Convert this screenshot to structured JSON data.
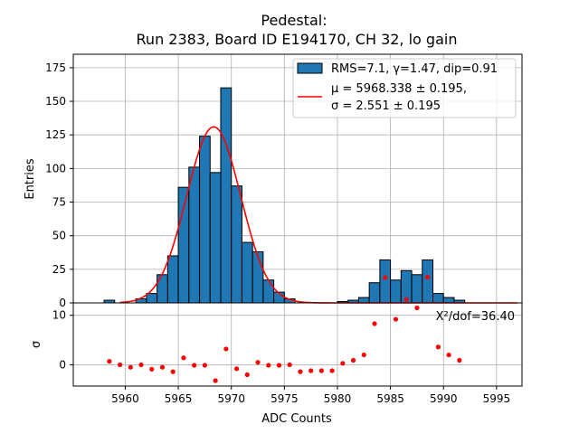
{
  "chart_data": {
    "type": "histogram",
    "title_line1": "Pedestal:",
    "title_line2": "Run 2383, Board ID E194170, CH 32, lo gain",
    "xlabel": "ADC Counts",
    "ylabel_top": "Entries",
    "ylabel_bottom": "σ",
    "xlim": [
      5955.1,
      5997.4
    ],
    "ylim_top": [
      0,
      185
    ],
    "ylim_bottom": [
      -4.3,
      12.5
    ],
    "xticks": [
      "5960",
      "5965",
      "5970",
      "5975",
      "5980",
      "5985",
      "5990",
      "5995"
    ],
    "xtick_values": [
      5960,
      5965,
      5970,
      5975,
      5980,
      5985,
      5990,
      5995
    ],
    "yticks_top": [
      "0",
      "25",
      "50",
      "75",
      "100",
      "125",
      "150",
      "175"
    ],
    "ytick_values_top": [
      0,
      25,
      50,
      75,
      100,
      125,
      150,
      175
    ],
    "yticks_bottom": [
      "0",
      "10"
    ],
    "ytick_values_bottom": [
      0,
      10
    ],
    "grid": true,
    "bar_color": "#1f77b4",
    "fit_color": "#ff0000",
    "residual_color": "#ff0000",
    "legend": {
      "position": "top-right",
      "hist_label": "RMS=7.1, γ=1.47, dip=0.91",
      "fit_line1": "μ = 5968.338 ± 0.195,",
      "fit_line2": "σ = 2.551 ± 0.195"
    },
    "chi2_label": "X²/dof=36.40",
    "bins": [
      {
        "x": 5958.5,
        "count": 2
      },
      {
        "x": 5959.5,
        "count": 0
      },
      {
        "x": 5960.5,
        "count": 0
      },
      {
        "x": 5961.5,
        "count": 3
      },
      {
        "x": 5962.5,
        "count": 7
      },
      {
        "x": 5963.5,
        "count": 21
      },
      {
        "x": 5964.5,
        "count": 35
      },
      {
        "x": 5965.5,
        "count": 86
      },
      {
        "x": 5966.5,
        "count": 101
      },
      {
        "x": 5967.5,
        "count": 124
      },
      {
        "x": 5968.5,
        "count": 97
      },
      {
        "x": 5969.5,
        "count": 160
      },
      {
        "x": 5970.5,
        "count": 87
      },
      {
        "x": 5971.5,
        "count": 45
      },
      {
        "x": 5972.5,
        "count": 38
      },
      {
        "x": 5973.5,
        "count": 17
      },
      {
        "x": 5974.5,
        "count": 8
      },
      {
        "x": 5975.5,
        "count": 3
      },
      {
        "x": 5980.5,
        "count": 1
      },
      {
        "x": 5981.5,
        "count": 2
      },
      {
        "x": 5982.5,
        "count": 4
      },
      {
        "x": 5983.5,
        "count": 15
      },
      {
        "x": 5984.5,
        "count": 32
      },
      {
        "x": 5985.5,
        "count": 17
      },
      {
        "x": 5986.5,
        "count": 24
      },
      {
        "x": 5987.5,
        "count": 21
      },
      {
        "x": 5988.5,
        "count": 32
      },
      {
        "x": 5989.5,
        "count": 7
      },
      {
        "x": 5990.5,
        "count": 4
      },
      {
        "x": 5991.5,
        "count": 2
      }
    ],
    "fit": {
      "mu": 5968.338,
      "sigma": 2.551,
      "amplitude": 131
    },
    "residuals": [
      {
        "x": 5958.5,
        "y": 0.7
      },
      {
        "x": 5959.5,
        "y": 0.0
      },
      {
        "x": 5960.5,
        "y": -0.5
      },
      {
        "x": 5961.5,
        "y": 0.0
      },
      {
        "x": 5962.5,
        "y": -0.9
      },
      {
        "x": 5963.5,
        "y": -0.5
      },
      {
        "x": 5964.5,
        "y": -1.4
      },
      {
        "x": 5965.5,
        "y": 1.4
      },
      {
        "x": 5966.5,
        "y": -0.1
      },
      {
        "x": 5967.5,
        "y": -0.1
      },
      {
        "x": 5968.5,
        "y": -3.2
      },
      {
        "x": 5969.5,
        "y": 3.2
      },
      {
        "x": 5970.5,
        "y": -0.8
      },
      {
        "x": 5971.5,
        "y": -2.0
      },
      {
        "x": 5972.5,
        "y": 0.5
      },
      {
        "x": 5973.5,
        "y": -0.1
      },
      {
        "x": 5974.5,
        "y": -0.1
      },
      {
        "x": 5975.5,
        "y": 0.0
      },
      {
        "x": 5976.5,
        "y": -1.4
      },
      {
        "x": 5977.5,
        "y": -1.2
      },
      {
        "x": 5978.5,
        "y": -1.2
      },
      {
        "x": 5979.5,
        "y": -1.2
      },
      {
        "x": 5980.5,
        "y": 0.3
      },
      {
        "x": 5981.5,
        "y": 0.9
      },
      {
        "x": 5982.5,
        "y": 2.0
      },
      {
        "x": 5983.5,
        "y": 8.3
      },
      {
        "x": 5984.5,
        "y": 17.6
      },
      {
        "x": 5985.5,
        "y": 9.2
      },
      {
        "x": 5986.5,
        "y": 13.2
      },
      {
        "x": 5987.5,
        "y": 11.5
      },
      {
        "x": 5988.5,
        "y": 17.7
      },
      {
        "x": 5989.5,
        "y": 3.6
      },
      {
        "x": 5990.5,
        "y": 2.0
      },
      {
        "x": 5991.5,
        "y": 0.9
      }
    ]
  }
}
